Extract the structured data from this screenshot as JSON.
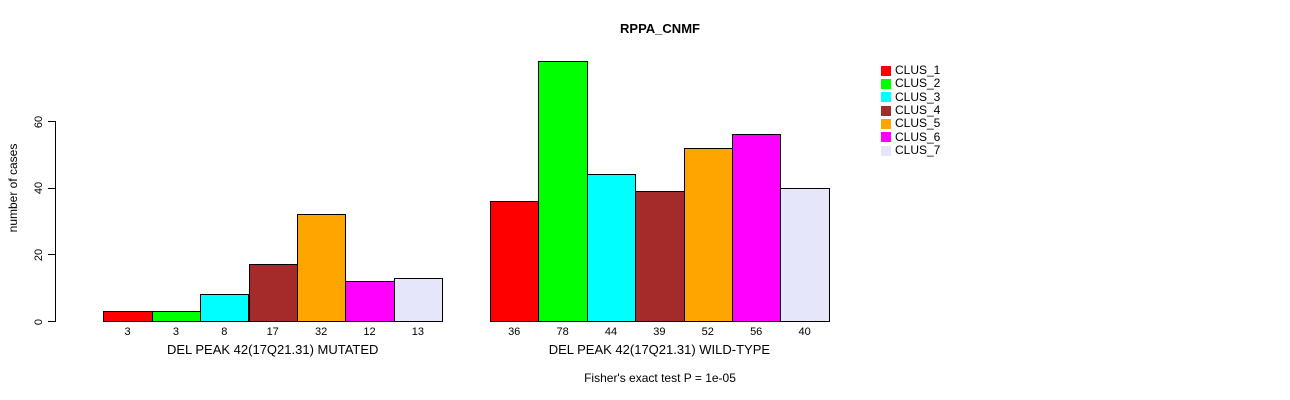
{
  "chart_data": {
    "type": "bar",
    "title": "RPPA_CNMF",
    "ylabel": "number of cases",
    "xlabel": "",
    "ylim": [
      0,
      80
    ],
    "yticks": [
      0,
      20,
      40,
      60
    ],
    "grid": false,
    "legend_position": "right",
    "categories": [
      "CLUS_1",
      "CLUS_2",
      "CLUS_3",
      "CLUS_4",
      "CLUS_5",
      "CLUS_6",
      "CLUS_7"
    ],
    "series_colors": [
      "#ff0000",
      "#00ff00",
      "#00ffff",
      "#a52a2a",
      "#ffa500",
      "#ff00ff",
      "#e6e6fa"
    ],
    "groups": [
      {
        "label": "DEL PEAK 42(17Q21.31) MUTATED",
        "values": [
          3,
          3,
          8,
          17,
          32,
          12,
          13
        ]
      },
      {
        "label": "DEL PEAK 42(17Q21.31) WILD-TYPE",
        "values": [
          36,
          78,
          44,
          39,
          52,
          56,
          40
        ]
      }
    ],
    "annotation": "Fisher's exact test P = 1e-05"
  }
}
